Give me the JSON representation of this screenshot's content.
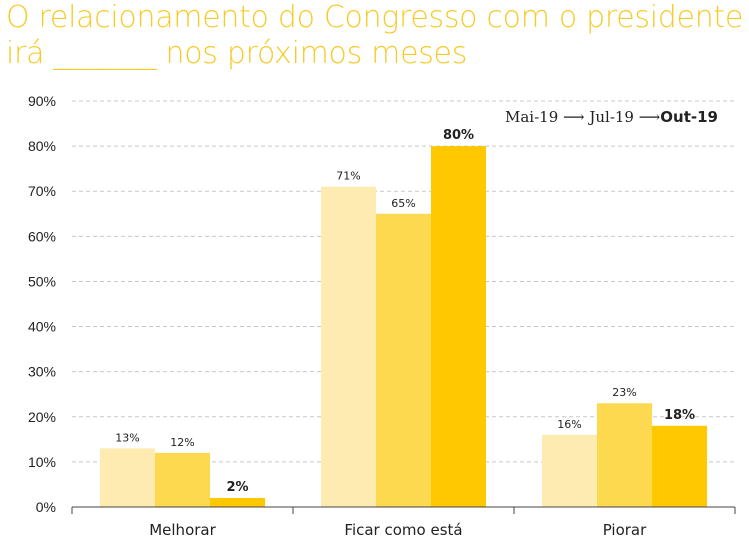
{
  "title_line1": "O relacionamento do Congresso com o presidente",
  "title_line2": "irá _______ nos próximos meses",
  "legend": {
    "items": [
      "Mai-19",
      "Jul-19",
      "Out-19"
    ]
  },
  "colors": [
    "#FDEBB2",
    "#FDD94F",
    "#FFC800"
  ],
  "chart_data": {
    "type": "bar",
    "title": "O relacionamento do Congresso com o presidente irá _______ nos próximos meses",
    "categories": [
      "Melhorar",
      "Ficar como está",
      "Piorar"
    ],
    "series": [
      {
        "name": "Mai-19",
        "values": [
          13,
          71,
          16
        ],
        "labels": [
          "13%",
          "71%",
          "16%"
        ]
      },
      {
        "name": "Jul-19",
        "values": [
          12,
          65,
          23
        ],
        "labels": [
          "12%",
          "65%",
          "23%"
        ]
      },
      {
        "name": "Out-19",
        "values": [
          2,
          80,
          18
        ],
        "labels": [
          "2%",
          "80%",
          "18%"
        ]
      }
    ],
    "yticks": [
      "0%",
      "10%",
      "20%",
      "30%",
      "40%",
      "50%",
      "60%",
      "70%",
      "80%",
      "90%"
    ],
    "ylim": [
      0,
      90
    ],
    "grid": true,
    "legend_position": "top-right"
  }
}
